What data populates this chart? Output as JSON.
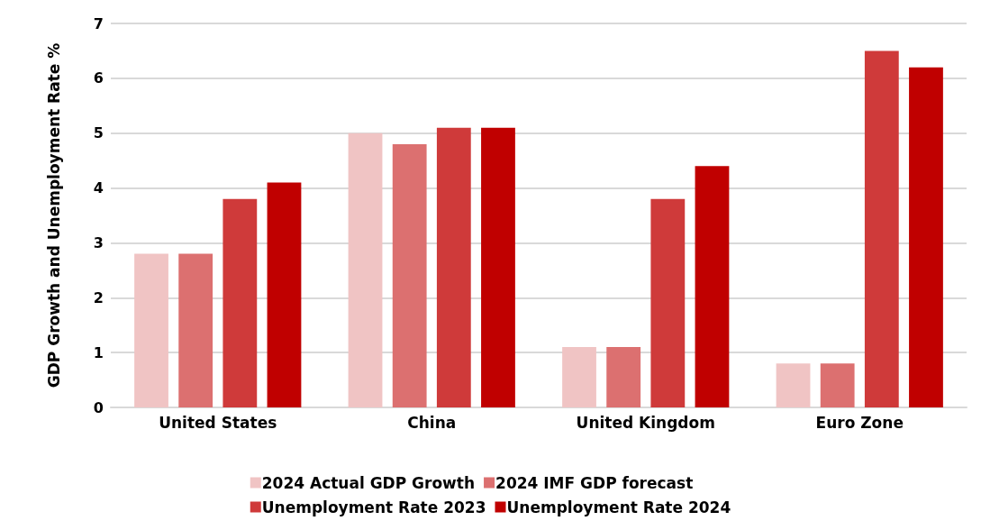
{
  "chart_data": {
    "type": "bar",
    "ylabel": "GDP Growth and Unemployment Rate %",
    "categories": [
      "United States",
      "China",
      "United Kingdom",
      "Euro Zone"
    ],
    "series": [
      {
        "name": "2024 Actual GDP Growth",
        "color": "#f0c4c4",
        "values": [
          2.8,
          5.0,
          1.1,
          0.8
        ]
      },
      {
        "name": "2024 IMF GDP forecast",
        "color": "#dc7070",
        "values": [
          2.8,
          4.8,
          1.1,
          0.8
        ]
      },
      {
        "name": "Unemployment Rate 2023",
        "color": "#cf3a3a",
        "values": [
          3.8,
          5.1,
          3.8,
          6.5
        ]
      },
      {
        "name": "Unemployment Rate 2024",
        "color": "#c00000",
        "values": [
          4.1,
          5.1,
          4.4,
          6.2
        ]
      }
    ],
    "ylim": [
      0,
      7
    ],
    "yticks": [
      0,
      1,
      2,
      3,
      4,
      5,
      6,
      7
    ],
    "grid": "y",
    "legend": "bottom"
  }
}
